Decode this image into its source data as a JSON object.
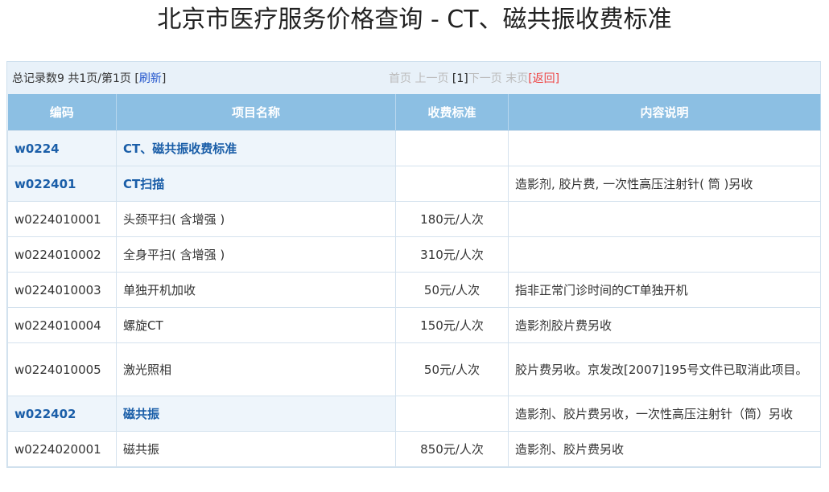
{
  "title": "北京市医疗服务价格查询 - CT、磁共振收费标准",
  "pager": {
    "summary": "总记录数9 共1页/第1页 [",
    "refresh": "刷新",
    "summary_end": "]",
    "first": "首页",
    "prev": "上一页",
    "current": "[1]",
    "next": "下一页",
    "last": "末页",
    "back_open": "[",
    "back": "返回",
    "back_close": "]"
  },
  "columns": [
    "编码",
    "项目名称",
    "收费标准",
    "内容说明"
  ],
  "rows": [
    {
      "code": "w0224",
      "name": "CT、磁共振收费标准",
      "price": "",
      "desc": "",
      "group": true
    },
    {
      "code": "w022401",
      "name": "CT扫描",
      "price": "",
      "desc": "造影剂, 胶片费, 一次性高压注射针( 筒 )另收",
      "group": true
    },
    {
      "code": "w0224010001",
      "name": "头颈平扫( 含增强 )",
      "price": "180元/人次",
      "desc": ""
    },
    {
      "code": "w0224010002",
      "name": "全身平扫( 含增强 )",
      "price": "310元/人次",
      "desc": ""
    },
    {
      "code": "w0224010003",
      "name": "单独开机加收",
      "price": "50元/人次",
      "desc": "指非正常门诊时间的CT单独开机"
    },
    {
      "code": "w0224010004",
      "name": "螺旋CT",
      "price": "150元/人次",
      "desc": "造影剂胶片费另收"
    },
    {
      "code": "w0224010005",
      "name": "激光照相",
      "price": "50元/人次",
      "desc": "胶片费另收。京发改[2007]195号文件已取消此项目。"
    },
    {
      "code": "w022402",
      "name": "磁共振",
      "price": "",
      "desc": "造影剂、胶片费另收，一次性高压注射针（筒）另收",
      "group": true
    },
    {
      "code": "w0224020001",
      "name": "磁共振",
      "price": "850元/人次",
      "desc": "造影剂、胶片费另收"
    }
  ]
}
